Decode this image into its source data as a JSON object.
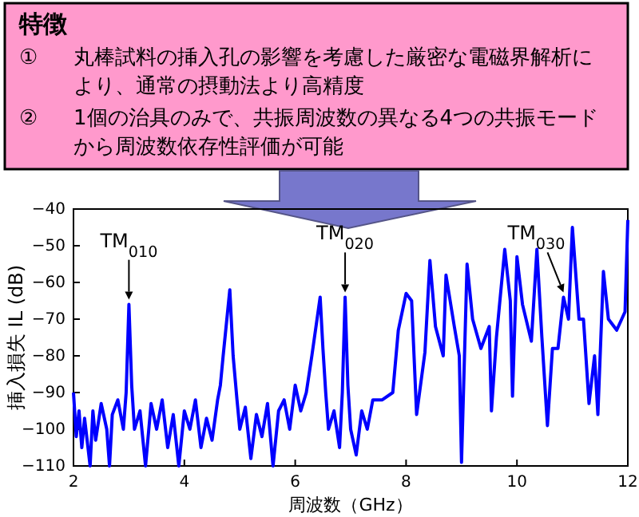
{
  "chart_data": {
    "type": "line",
    "title": "特徴",
    "xlabel": "周波数（GHz）",
    "ylabel": "挿入損失 IL (dB)",
    "xlim": [
      2,
      12
    ],
    "ylim": [
      -110,
      -40
    ],
    "xticks": [
      2,
      4,
      6,
      8,
      10,
      12
    ],
    "yticks": [
      -110,
      -100,
      -90,
      -80,
      -70,
      -60,
      -50,
      -40
    ],
    "grid": false,
    "marker": "none",
    "line_style": "solid",
    "annotations": [
      "①　丸棒試料の挿入孔の影響を考慮した厳密な電磁界解析により、通常の摂動法より高精度",
      "②　1個の治具のみで、共振周波数の異なる4つの共振モードから周波数依存性評価が可能",
      {
        "text": "TM$_{010}$",
        "x": 3.0,
        "y": -66
      },
      {
        "text": "TM$_{020}$",
        "x": 6.9,
        "y": -64
      },
      {
        "text": "TM$_{030}$",
        "x": 10.84,
        "y": -64
      }
    ],
    "series": [
      {
        "color": "#0000ff",
        "x": [
          2.0,
          2.05,
          2.1,
          2.15,
          2.2,
          2.3,
          2.35,
          2.4,
          2.5,
          2.6,
          2.65,
          2.7,
          2.8,
          2.9,
          2.95,
          3.0,
          3.05,
          3.1,
          3.2,
          3.3,
          3.4,
          3.5,
          3.6,
          3.7,
          3.8,
          3.9,
          4.0,
          4.1,
          4.2,
          4.3,
          4.4,
          4.5,
          4.6,
          4.65,
          4.7,
          4.82,
          4.88,
          4.95,
          5.0,
          5.1,
          5.2,
          5.3,
          5.4,
          5.5,
          5.6,
          5.7,
          5.8,
          5.9,
          6.0,
          6.1,
          6.2,
          6.3,
          6.45,
          6.5,
          6.55,
          6.6,
          6.7,
          6.8,
          6.85,
          6.9,
          6.95,
          7.0,
          7.1,
          7.2,
          7.3,
          7.4,
          7.57,
          7.76,
          7.86,
          8.0,
          8.1,
          8.19,
          8.34,
          8.43,
          8.53,
          8.67,
          8.72,
          8.87,
          8.96,
          9.0,
          9.1,
          9.2,
          9.35,
          9.5,
          9.54,
          9.63,
          9.78,
          9.88,
          9.92,
          10.0,
          10.1,
          10.26,
          10.36,
          10.45,
          10.55,
          10.64,
          10.74,
          10.84,
          10.93,
          11.0,
          11.12,
          11.2,
          11.3,
          11.4,
          11.46,
          11.56,
          11.65,
          11.8,
          11.95,
          12.0
        ],
        "values": [
          -90,
          -102,
          -95,
          -105,
          -97,
          -110,
          -95,
          -103,
          -93,
          -100,
          -110,
          -96,
          -92,
          -100,
          -90,
          -66,
          -88,
          -100,
          -95,
          -110,
          -93,
          -100,
          -92,
          -105,
          -96,
          -110,
          -95,
          -100,
          -92,
          -105,
          -97,
          -103,
          -92,
          -88,
          -80,
          -62,
          -80,
          -92,
          -100,
          -94,
          -108,
          -96,
          -102,
          -93,
          -110,
          -95,
          -92,
          -100,
          -88,
          -95,
          -90,
          -80,
          -64,
          -78,
          -90,
          -100,
          -95,
          -105,
          -90,
          -64,
          -88,
          -100,
          -107,
          -95,
          -100,
          -92,
          -92,
          -90,
          -73,
          -63,
          -65,
          -96,
          -79,
          -54,
          -72,
          -80,
          -58,
          -72,
          -80,
          -109,
          -55,
          -70,
          -78,
          -72,
          -95,
          -75,
          -51,
          -65,
          -91,
          -53,
          -66,
          -76,
          -51,
          -75,
          -99,
          -78,
          -78,
          -64,
          -70,
          -45,
          -70,
          -70,
          -93,
          -80,
          -96,
          -57,
          -70,
          -73,
          -68,
          -43
        ]
      }
    ]
  }
}
